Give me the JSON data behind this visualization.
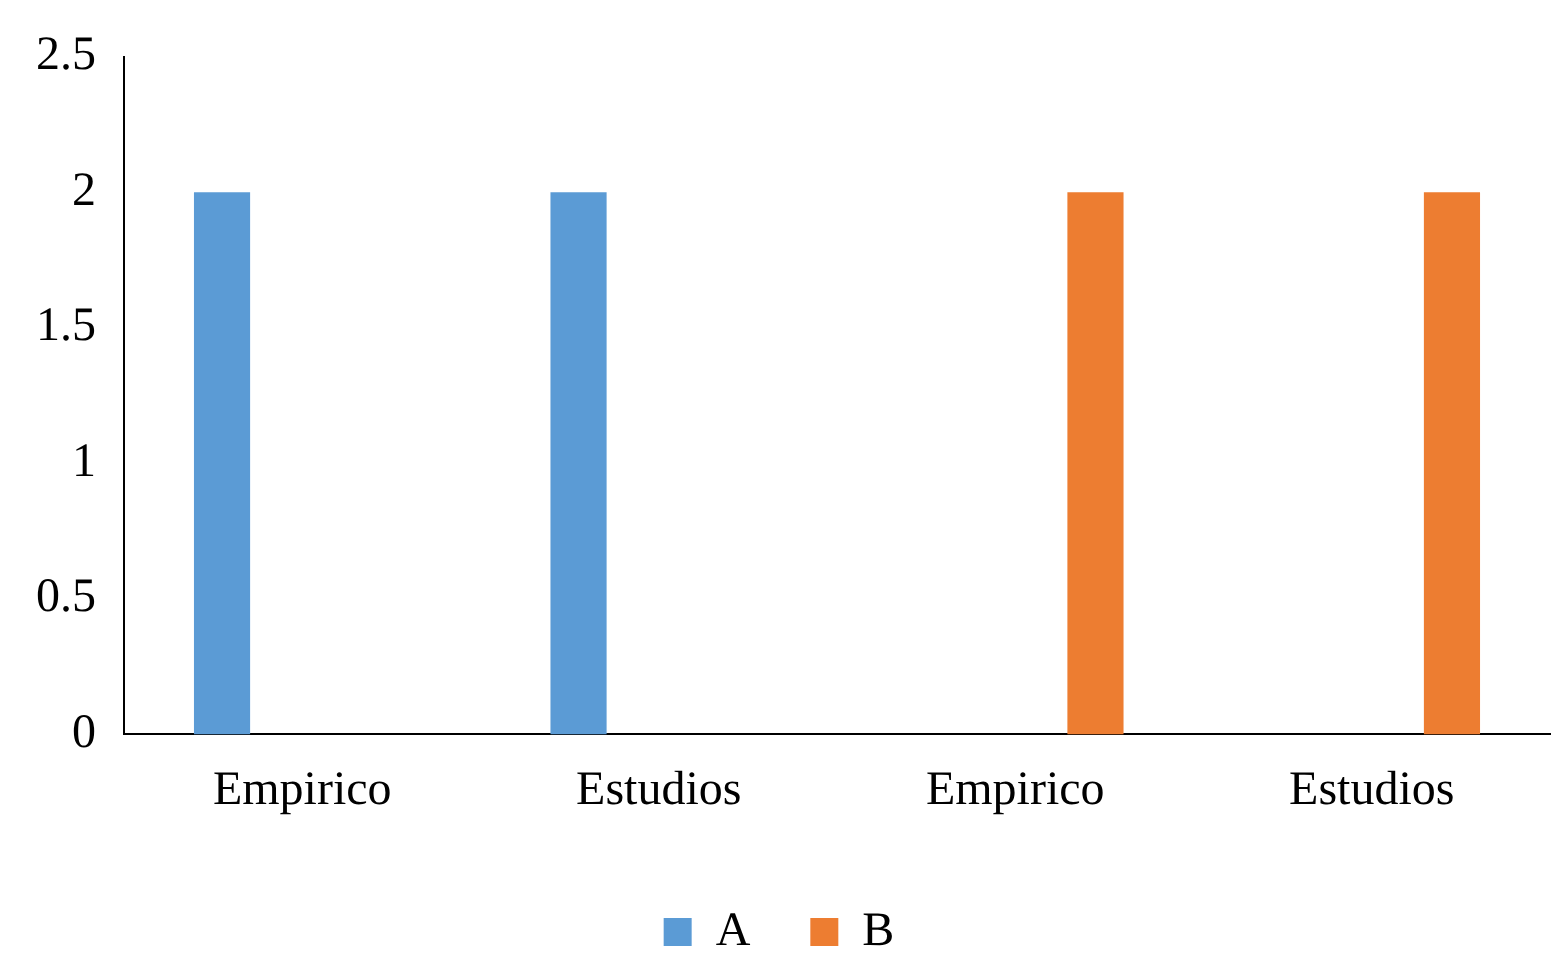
{
  "chart_data": {
    "type": "bar",
    "categories": [
      "Empirico",
      "Estudios",
      "Empirico",
      "Estudios"
    ],
    "series": [
      {
        "name": "A",
        "color": "#5b9bd5",
        "values": [
          2,
          2,
          null,
          null
        ]
      },
      {
        "name": "B",
        "color": "#ed7d31",
        "values": [
          null,
          null,
          2,
          2
        ]
      }
    ],
    "ylim": [
      0,
      2.5
    ],
    "yticks": [
      0,
      0.5,
      1,
      1.5,
      2,
      2.5
    ],
    "grid": false,
    "legend": "bottom"
  }
}
